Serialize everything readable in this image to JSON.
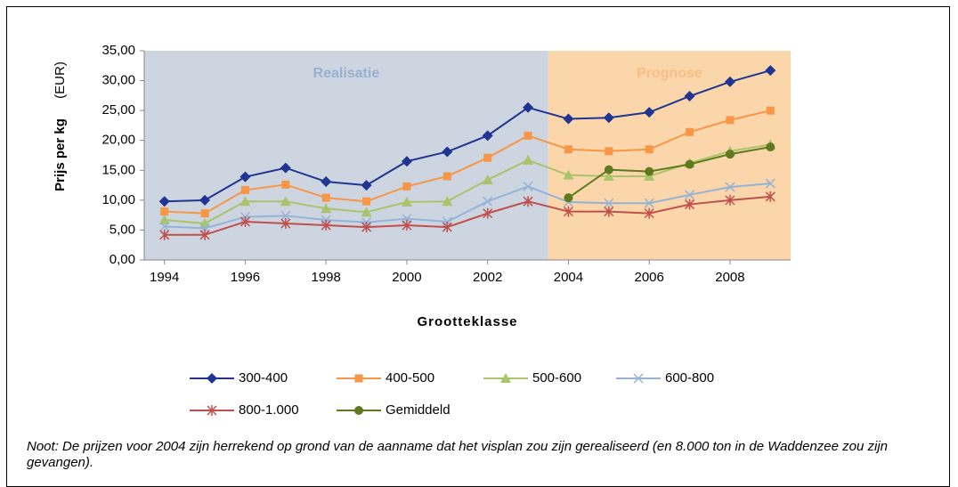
{
  "chart_data": {
    "type": "line",
    "y_label": "Prijs per kg",
    "y_unit": "(EUR)",
    "x_label": "Grootteklasse",
    "x": [
      1994,
      1995,
      1996,
      1997,
      1998,
      1999,
      2000,
      2001,
      2002,
      2003,
      2004,
      2005,
      2006,
      2007,
      2008,
      2009
    ],
    "xlim": [
      1993.5,
      2009.5
    ],
    "xticks": [
      1994,
      1996,
      1998,
      2000,
      2002,
      2004,
      2006,
      2008
    ],
    "ylim": [
      0,
      35
    ],
    "yticks": [
      {
        "value": 0,
        "label": "0,00"
      },
      {
        "value": 5,
        "label": "5,00"
      },
      {
        "value": 10,
        "label": "10,00"
      },
      {
        "value": 15,
        "label": "15,00"
      },
      {
        "value": 20,
        "label": "20,00"
      },
      {
        "value": 25,
        "label": "25,00"
      },
      {
        "value": 30,
        "label": "30,00"
      },
      {
        "value": 35,
        "label": "35,00"
      }
    ],
    "regions": [
      {
        "label": "Realisatie",
        "from": 1993.5,
        "to": 2003.5,
        "color": "#cdd5e1",
        "label_color": "#9ab0d0"
      },
      {
        "label": "Prognose",
        "from": 2003.5,
        "to": 2009.5,
        "color": "#fbd6ab",
        "label_color": "#f9bd86"
      }
    ],
    "series": [
      {
        "name": "300-400",
        "color": "#1f3591",
        "marker": "diamond",
        "values": [
          9.8,
          10.0,
          13.9,
          15.4,
          13.1,
          12.5,
          16.5,
          18.1,
          20.8,
          25.5,
          23.6,
          23.8,
          24.7,
          27.4,
          29.8,
          31.7
        ]
      },
      {
        "name": "400-500",
        "color": "#f79646",
        "marker": "square",
        "values": [
          8.1,
          7.8,
          11.7,
          12.6,
          10.4,
          9.8,
          12.3,
          14.0,
          17.1,
          20.8,
          18.5,
          18.2,
          18.5,
          21.4,
          23.4,
          25.0
        ]
      },
      {
        "name": "500-600",
        "color": "#a9c46b",
        "marker": "triangle",
        "values": [
          6.7,
          6.1,
          9.8,
          9.8,
          8.6,
          8.0,
          9.7,
          9.8,
          13.4,
          16.7,
          14.2,
          14.0,
          14.0,
          16.2,
          18.2,
          19.3
        ]
      },
      {
        "name": "600-800",
        "color": "#95b3d7",
        "marker": "x",
        "values": [
          5.6,
          5.3,
          7.2,
          7.4,
          6.7,
          6.3,
          6.9,
          6.4,
          9.8,
          12.3,
          9.7,
          9.5,
          9.5,
          10.9,
          12.2,
          12.8
        ]
      },
      {
        "name": "800-1.000",
        "color": "#c0504d",
        "marker": "star",
        "values": [
          4.2,
          4.2,
          6.4,
          6.1,
          5.8,
          5.5,
          5.8,
          5.5,
          7.8,
          9.8,
          8.1,
          8.1,
          7.8,
          9.3,
          10.0,
          10.6
        ]
      },
      {
        "name": "Gemiddeld",
        "color": "#5f7a1f",
        "marker": "circle",
        "values": [
          null,
          null,
          null,
          null,
          null,
          null,
          null,
          null,
          null,
          null,
          10.4,
          15.1,
          14.8,
          16.0,
          17.7,
          18.9
        ]
      }
    ],
    "note": "Noot: De prijzen voor 2004 zijn herrekend op grond van de aanname dat het visplan zou zijn gerealiseerd (en 8.000 ton in de Waddenzee zou zijn gevangen)."
  }
}
